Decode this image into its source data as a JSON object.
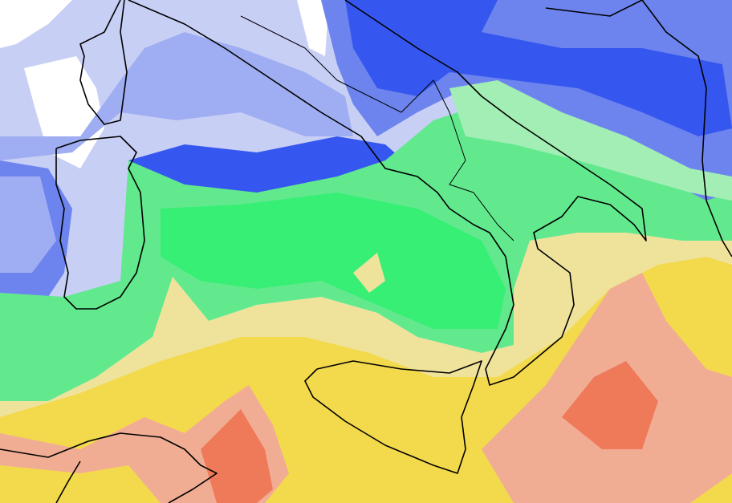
{
  "map": {
    "palette": {
      "white": "#ffffff",
      "lavender": "#c8cff5",
      "periwinkle": "#9fadf2",
      "medium_blue": "#6d84ee",
      "deep_blue": "#3557ef",
      "pale_green": "#a2eeb4",
      "green": "#62e98e",
      "bright_green": "#36ef74",
      "pale_yellow": "#efe39c",
      "yellow": "#f3d94c",
      "salmon": "#f1ad94",
      "orange_red": "#ef7a5a",
      "coastline": "#000000"
    }
  }
}
